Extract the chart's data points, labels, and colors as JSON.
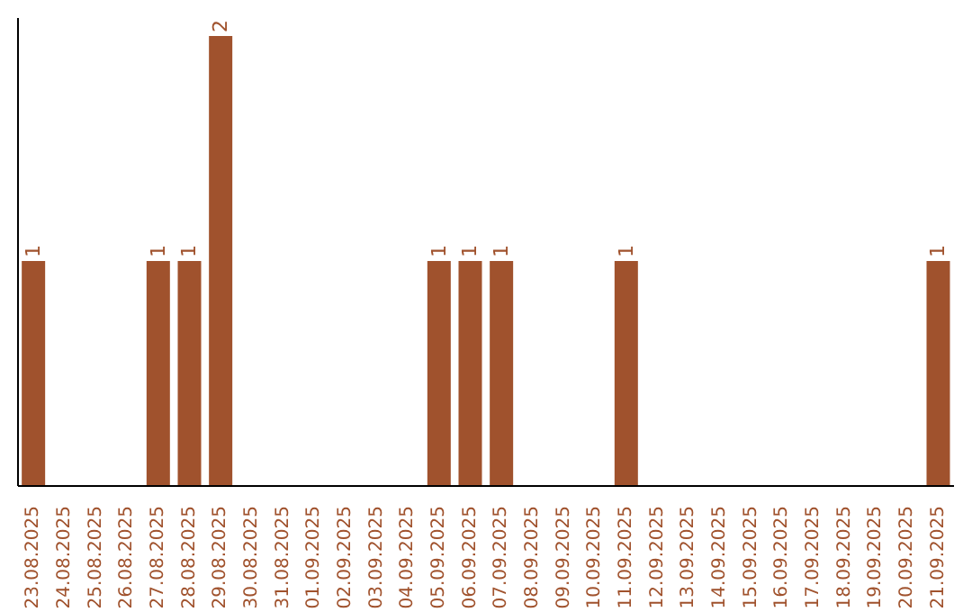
{
  "chart_data": {
    "type": "bar",
    "categories": [
      "23.08.2025",
      "24.08.2025",
      "25.08.2025",
      "26.08.2025",
      "27.08.2025",
      "28.08.2025",
      "29.08.2025",
      "30.08.2025",
      "31.08.2025",
      "01.09.2025",
      "02.09.2025",
      "03.09.2025",
      "04.09.2025",
      "05.09.2025",
      "06.09.2025",
      "07.09.2025",
      "08.09.2025",
      "09.09.2025",
      "10.09.2025",
      "11.09.2025",
      "12.09.2025",
      "13.09.2025",
      "14.09.2025",
      "15.09.2025",
      "16.09.2025",
      "17.09.2025",
      "18.09.2025",
      "19.09.2025",
      "20.09.2025",
      "21.09.2025"
    ],
    "values": [
      1,
      0,
      0,
      0,
      1,
      1,
      2,
      0,
      0,
      0,
      0,
      0,
      0,
      1,
      1,
      1,
      0,
      0,
      0,
      1,
      0,
      0,
      0,
      0,
      0,
      0,
      0,
      0,
      0,
      1
    ],
    "value_labels": [
      "1",
      null,
      null,
      null,
      "1",
      "1",
      "2",
      null,
      null,
      null,
      null,
      null,
      null,
      "1",
      "1",
      "1",
      null,
      null,
      null,
      "1",
      null,
      null,
      null,
      null,
      null,
      null,
      null,
      null,
      null,
      "1"
    ],
    "color": "#a0522d",
    "ylim": [
      0,
      2.08
    ],
    "grid": false
  }
}
